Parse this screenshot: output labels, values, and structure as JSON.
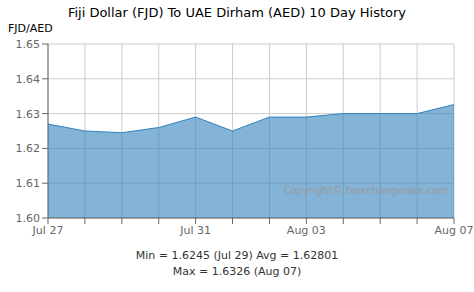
{
  "chart_data": {
    "type": "area",
    "title": "Fiji Dollar (FJD) To UAE Dirham (AED) 10 Day History",
    "ylabel": "FJD/AED",
    "annotations": [
      "Copyright© fxexchangerate.com",
      "Min = 1.6245 (Jul 29) Avg = 1.62801",
      "Max = 1.6326 (Aug 07)"
    ],
    "categories": [
      "Jul 27",
      null,
      null,
      null,
      "Jul 31",
      null,
      null,
      "Aug 03",
      null,
      null,
      null,
      "Aug 07"
    ],
    "values": [
      1.627,
      1.625,
      1.6245,
      1.626,
      1.629,
      1.625,
      1.629,
      1.629,
      1.63,
      1.63,
      1.63,
      1.6326
    ],
    "ylim": [
      1.6,
      1.65
    ],
    "yticks": [
      {
        "value": 1.6,
        "label": "1.60"
      },
      1.61,
      1.62,
      1.63,
      1.64,
      1.65
    ],
    "grid": true
  }
}
